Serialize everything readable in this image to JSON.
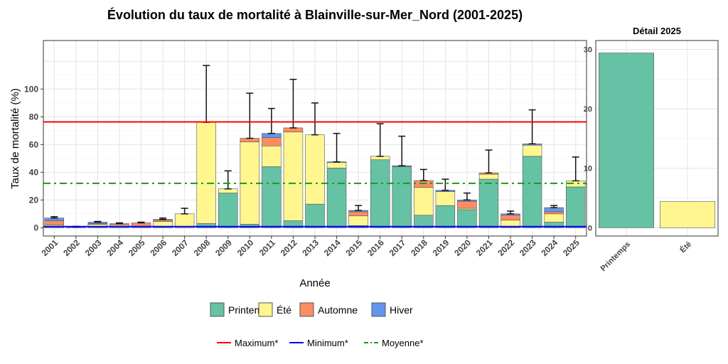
{
  "chart_data": [
    {
      "type": "bar",
      "stacked": true,
      "title": "Évolution du taux de mortalité à Blainville-sur-Mer_Nord (2001-2025)",
      "xlabel": "Année",
      "ylabel": "Taux de mortalité (%)",
      "ylim": [
        -6,
        135
      ],
      "yticks": [
        0,
        20,
        40,
        60,
        80,
        100
      ],
      "grid": true,
      "categories": [
        "2001",
        "2002",
        "2003",
        "2004",
        "2005",
        "2006",
        "2007",
        "2008",
        "2009",
        "2010",
        "2011",
        "2012",
        "2013",
        "2014",
        "2015",
        "2016",
        "2017",
        "2018",
        "2019",
        "2020",
        "2021",
        "2022",
        "2023",
        "2024",
        "2025"
      ],
      "series": [
        {
          "name": "Printemps",
          "color": "#66C2A5",
          "values": [
            1,
            0.5,
            1,
            1,
            1,
            1,
            0,
            3,
            25,
            2.5,
            44,
            5,
            17,
            43,
            1.5,
            49,
            44,
            9,
            16,
            13,
            35,
            1,
            51.5,
            4,
            29.4
          ]
        },
        {
          "name": "Été",
          "color": "#FFF68F",
          "values": [
            1,
            0,
            1.5,
            1,
            0,
            3.5,
            10,
            73,
            3,
            59.5,
            15,
            64,
            50,
            4,
            7,
            2.5,
            0,
            20,
            10,
            1,
            3.5,
            4.5,
            8,
            6,
            4.4
          ]
        },
        {
          "name": "Automne",
          "color": "#FC8D62",
          "values": [
            3,
            0,
            0.5,
            1,
            2.5,
            1,
            0,
            0,
            0,
            2.5,
            6,
            3,
            0,
            0,
            3,
            0,
            0,
            5,
            0,
            5,
            1,
            3.5,
            0,
            1.5,
            0
          ]
        },
        {
          "name": "Hiver",
          "color": "#6495ED",
          "values": [
            2,
            0,
            1,
            0,
            0,
            0.5,
            0,
            0,
            0,
            0,
            3,
            0,
            0,
            0.5,
            1,
            0,
            0.7,
            0,
            1,
            1,
            0,
            1,
            1,
            3,
            0
          ]
        }
      ],
      "error_upper": [
        8,
        1,
        4.5,
        3.5,
        4,
        7,
        14,
        117,
        41,
        97,
        86,
        107,
        90,
        68,
        16,
        75,
        66,
        42,
        35,
        25,
        56,
        12,
        85,
        16,
        51
      ],
      "reference_lines": [
        {
          "name": "Maximum*",
          "value": 76.3,
          "color": "#FF0000",
          "style": "solid"
        },
        {
          "name": "Minimum*",
          "value": 0.8,
          "color": "#0000FF",
          "style": "solid"
        },
        {
          "name": "Moyenne*",
          "value": 32,
          "color": "#1A9A1A",
          "style": "dotdash"
        }
      ],
      "legend_placement": "bottom"
    },
    {
      "type": "bar",
      "title": "Détail 2025",
      "categories": [
        "Printemps",
        "Été"
      ],
      "values": [
        29.4,
        4.4
      ],
      "colors": [
        "#66C2A5",
        "#FFF68F"
      ],
      "ylim": [
        -1.4,
        31.5
      ],
      "yticks": [
        0,
        10,
        20,
        30
      ],
      "grid": true
    }
  ]
}
